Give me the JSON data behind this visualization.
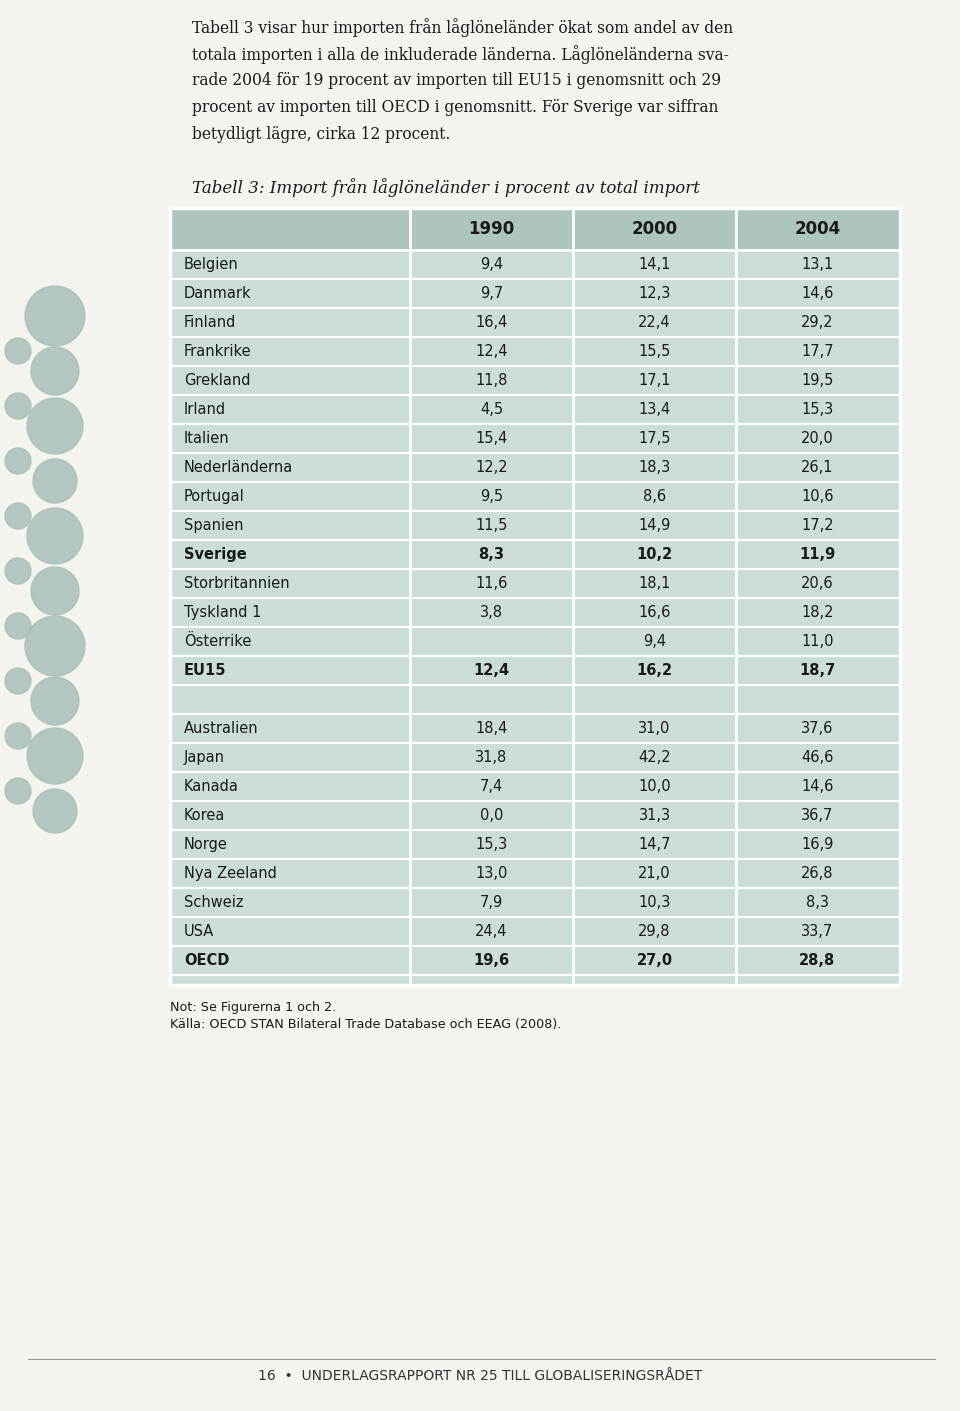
{
  "title_lines": [
    "Tabell 3 visar hur importen från låglöneländer ökat som andel av den",
    "totala importen i alla de inkluderade länderna. Låglöneländerna sva-",
    "rade 2004 för 19 procent av importen till EU15 i genomsnitt och 29",
    "procent av importen till OECD i genomsnitt. För Sverige var siffran",
    "betydligt lägre, cirka 12 procent."
  ],
  "table_title": "Tabell 3: Import från låglöneländer i procent av total import",
  "columns": [
    "",
    "1990",
    "2000",
    "2004"
  ],
  "rows": [
    {
      "name": "Belgien",
      "bold": false,
      "v1990": "9,4",
      "v2000": "14,1",
      "v2004": "13,1"
    },
    {
      "name": "Danmark",
      "bold": false,
      "v1990": "9,7",
      "v2000": "12,3",
      "v2004": "14,6"
    },
    {
      "name": "Finland",
      "bold": false,
      "v1990": "16,4",
      "v2000": "22,4",
      "v2004": "29,2"
    },
    {
      "name": "Frankrike",
      "bold": false,
      "v1990": "12,4",
      "v2000": "15,5",
      "v2004": "17,7"
    },
    {
      "name": "Grekland",
      "bold": false,
      "v1990": "11,8",
      "v2000": "17,1",
      "v2004": "19,5"
    },
    {
      "name": "Irland",
      "bold": false,
      "v1990": "4,5",
      "v2000": "13,4",
      "v2004": "15,3"
    },
    {
      "name": "Italien",
      "bold": false,
      "v1990": "15,4",
      "v2000": "17,5",
      "v2004": "20,0"
    },
    {
      "name": "Nederländerna",
      "bold": false,
      "v1990": "12,2",
      "v2000": "18,3",
      "v2004": "26,1"
    },
    {
      "name": "Portugal",
      "bold": false,
      "v1990": "9,5",
      "v2000": "8,6",
      "v2004": "10,6"
    },
    {
      "name": "Spanien",
      "bold": false,
      "v1990": "11,5",
      "v2000": "14,9",
      "v2004": "17,2"
    },
    {
      "name": "Sverige",
      "bold": true,
      "v1990": "8,3",
      "v2000": "10,2",
      "v2004": "11,9"
    },
    {
      "name": "Storbritannien",
      "bold": false,
      "v1990": "11,6",
      "v2000": "18,1",
      "v2004": "20,6"
    },
    {
      "name": "Tyskland 1",
      "bold": false,
      "v1990": "3,8",
      "v2000": "16,6",
      "v2004": "18,2"
    },
    {
      "name": "Österrike",
      "bold": false,
      "v1990": "",
      "v2000": "9,4",
      "v2004": "11,0"
    },
    {
      "name": "EU15",
      "bold": true,
      "v1990": "12,4",
      "v2000": "16,2",
      "v2004": "18,7"
    },
    {
      "name": "",
      "bold": false,
      "v1990": "",
      "v2000": "",
      "v2004": ""
    },
    {
      "name": "Australien",
      "bold": false,
      "v1990": "18,4",
      "v2000": "31,0",
      "v2004": "37,6"
    },
    {
      "name": "Japan",
      "bold": false,
      "v1990": "31,8",
      "v2000": "42,2",
      "v2004": "46,6"
    },
    {
      "name": "Kanada",
      "bold": false,
      "v1990": "7,4",
      "v2000": "10,0",
      "v2004": "14,6"
    },
    {
      "name": "Korea",
      "bold": false,
      "v1990": "0,0",
      "v2000": "31,3",
      "v2004": "36,7"
    },
    {
      "name": "Norge",
      "bold": false,
      "v1990": "15,3",
      "v2000": "14,7",
      "v2004": "16,9"
    },
    {
      "name": "Nya Zeeland",
      "bold": false,
      "v1990": "13,0",
      "v2000": "21,0",
      "v2004": "26,8"
    },
    {
      "name": "Schweiz",
      "bold": false,
      "v1990": "7,9",
      "v2000": "10,3",
      "v2004": "8,3"
    },
    {
      "name": "USA",
      "bold": false,
      "v1990": "24,4",
      "v2000": "29,8",
      "v2004": "33,7"
    },
    {
      "name": "OECD",
      "bold": true,
      "v1990": "19,6",
      "v2000": "27,0",
      "v2004": "28,8"
    }
  ],
  "note1": "Not: Se Figurerna 1 och 2.",
  "note2": "Källa: OECD STAN Bilateral Trade Database och EEAG (2008).",
  "footer": "16  •  UNDERLAGSRAPPORT NR 25 TILL GLOBALISERINGSRÅDET",
  "page_bg": "#f4f3ee",
  "table_header_bg": "#adc5be",
  "table_row_bg": "#ccddd8",
  "circles_color": "#a8bfba"
}
